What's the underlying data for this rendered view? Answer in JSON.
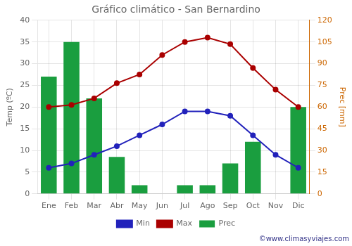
{
  "chart_data": {
    "type": "bar",
    "title": "Gráfico climático - San Bernardino",
    "categories": [
      "Ene",
      "Feb",
      "Mar",
      "Abr",
      "May",
      "Jun",
      "Jul",
      "Ago",
      "Sep",
      "Oct",
      "Nov",
      "Dic"
    ],
    "series": [
      {
        "name": "Prec",
        "type": "bar",
        "color": "#1a9e3f",
        "axis": "y2",
        "values": [
          81,
          105,
          66,
          25.5,
          6,
          0,
          6,
          6,
          21,
          36,
          0,
          60
        ]
      },
      {
        "name": "Min",
        "type": "line",
        "color": "#2222bb",
        "marker": "circle",
        "values": [
          6,
          7,
          9,
          11,
          13.5,
          16,
          19,
          19,
          18,
          13.5,
          9,
          6
        ]
      },
      {
        "name": "Max",
        "type": "line",
        "color": "#aa0000",
        "marker": "circle",
        "values": [
          20,
          20.5,
          22,
          25.5,
          27.5,
          32,
          35,
          36,
          34.5,
          29,
          24,
          20
        ]
      }
    ],
    "ylabel": "Temp (ºC)",
    "y2label": "Prec [mm]",
    "ylim": [
      0,
      40
    ],
    "yticks": [
      0,
      5,
      10,
      15,
      20,
      25,
      30,
      35,
      40
    ],
    "y2lim": [
      0,
      120
    ],
    "y2ticks": [
      0,
      15,
      30,
      45,
      60,
      75,
      90,
      105,
      120
    ],
    "grid": true,
    "legend": "bottom",
    "annotations": [
      "©www.climasyviajes.com"
    ]
  }
}
